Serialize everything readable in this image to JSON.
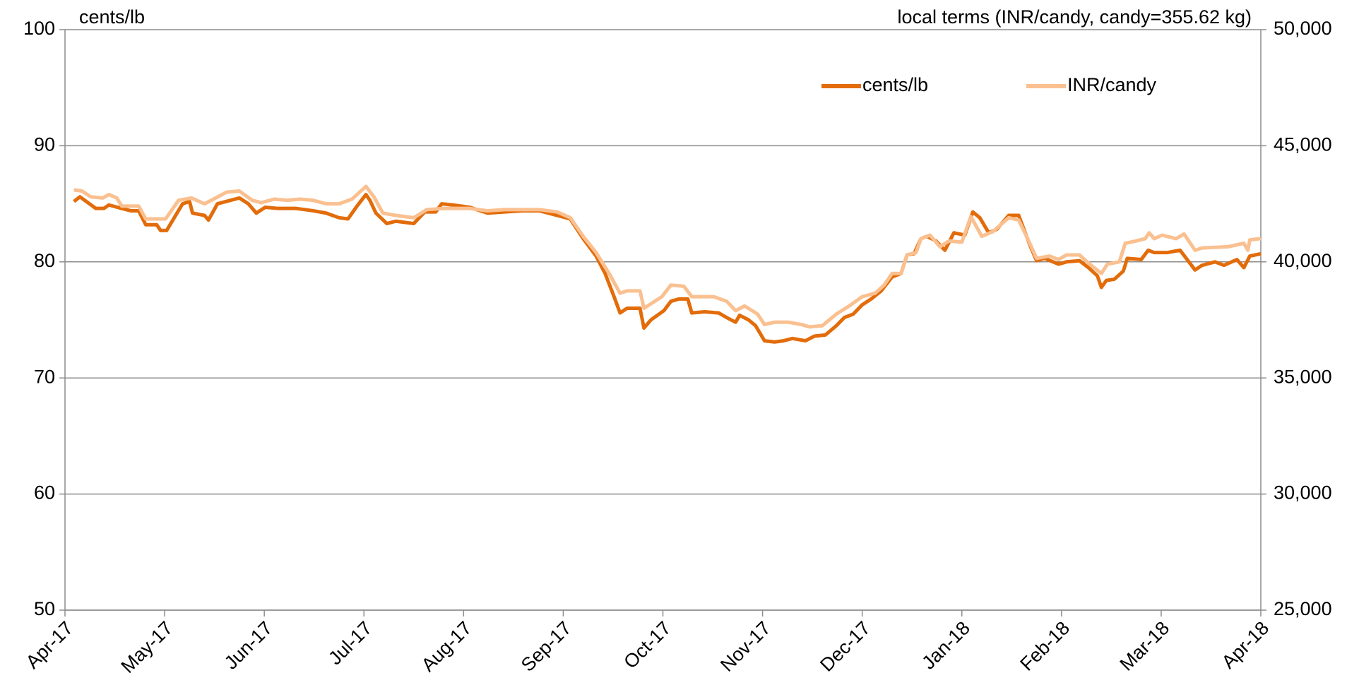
{
  "chart_data": {
    "type": "line",
    "y_label": "cents/lb",
    "y2_label": "local terms (INR/candy, candy=355.62 kg)",
    "xlim": [
      0,
      12
    ],
    "xticks": [
      {
        "value": 0,
        "label": "Apr-17"
      },
      {
        "value": 1,
        "label": "May-17"
      },
      {
        "value": 2,
        "label": "Jun-17"
      },
      {
        "value": 3,
        "label": "Jul-17"
      },
      {
        "value": 4,
        "label": "Aug-17"
      },
      {
        "value": 5,
        "label": "Sep-17"
      },
      {
        "value": 6,
        "label": "Oct-17"
      },
      {
        "value": 7,
        "label": "Nov-17"
      },
      {
        "value": 8,
        "label": "Dec-17"
      },
      {
        "value": 9,
        "label": "Jan-18"
      },
      {
        "value": 10,
        "label": "Feb-18"
      },
      {
        "value": 11,
        "label": "Mar-18"
      },
      {
        "value": 12,
        "label": "Apr-18"
      }
    ],
    "ylim": [
      50,
      100
    ],
    "yticks": [
      50,
      60,
      70,
      80,
      90,
      100
    ],
    "y2lim": [
      25000,
      50000
    ],
    "y2ticks": [
      {
        "value": 25000,
        "label": "25,000"
      },
      {
        "value": 30000,
        "label": "30,000"
      },
      {
        "value": 35000,
        "label": "35,000"
      },
      {
        "value": 40000,
        "label": "40,000"
      },
      {
        "value": 45000,
        "label": "45,000"
      },
      {
        "value": 50000,
        "label": "50,000"
      }
    ],
    "grid": true,
    "legend": "top-right",
    "series": [
      {
        "name": "cents/lb",
        "color": "#e36c0a",
        "x": [
          0.09,
          0.15,
          0.31,
          0.39,
          0.44,
          0.57,
          0.66,
          0.74,
          0.81,
          0.92,
          0.96,
          1.02,
          1.18,
          1.25,
          1.28,
          1.4,
          1.44,
          1.53,
          1.66,
          1.75,
          1.84,
          1.92,
          2.01,
          2.14,
          2.32,
          2.49,
          2.62,
          2.75,
          2.84,
          2.93,
          3.02,
          3.06,
          3.12,
          3.23,
          3.32,
          3.5,
          3.61,
          3.72,
          3.78,
          3.89,
          4.06,
          4.24,
          4.41,
          4.59,
          4.76,
          4.94,
          5.07,
          5.2,
          5.33,
          5.42,
          5.51,
          5.57,
          5.64,
          5.77,
          5.81,
          5.88,
          6.01,
          6.08,
          6.16,
          6.25,
          6.29,
          6.42,
          6.56,
          6.64,
          6.73,
          6.77,
          6.86,
          6.93,
          7.02,
          7.12,
          7.21,
          7.3,
          7.43,
          7.52,
          7.63,
          7.74,
          7.82,
          7.91,
          8.0,
          8.09,
          8.19,
          8.3,
          8.39,
          8.45,
          8.52,
          8.59,
          8.65,
          8.74,
          8.83,
          8.92,
          9.03,
          9.11,
          9.18,
          9.27,
          9.35,
          9.47,
          9.57,
          9.68,
          9.75,
          9.83,
          9.97,
          10.05,
          10.18,
          10.27,
          10.36,
          10.4,
          10.45,
          10.53,
          10.62,
          10.66,
          10.8,
          10.87,
          10.93,
          11.06,
          11.19,
          11.34,
          11.41,
          11.54,
          11.63,
          11.76,
          11.83,
          11.89,
          12.0
        ],
        "values": [
          85.2,
          85.6,
          84.6,
          84.6,
          84.9,
          84.6,
          84.4,
          84.4,
          83.2,
          83.2,
          82.7,
          82.7,
          85,
          85.2,
          84.2,
          84,
          83.6,
          85,
          85.3,
          85.5,
          85,
          84.2,
          84.7,
          84.6,
          84.6,
          84.4,
          84.2,
          83.8,
          83.7,
          84.8,
          85.8,
          85.3,
          84.2,
          83.3,
          83.5,
          83.3,
          84.3,
          84.3,
          85,
          84.9,
          84.7,
          84.2,
          84.3,
          84.4,
          84.4,
          84,
          83.7,
          82,
          80.5,
          79,
          77,
          75.6,
          76,
          76,
          74.3,
          75,
          75.8,
          76.6,
          76.8,
          76.8,
          75.6,
          75.7,
          75.6,
          75.2,
          74.8,
          75.4,
          75,
          74.5,
          73.2,
          73.1,
          73.2,
          73.4,
          73.2,
          73.6,
          73.7,
          74.5,
          75.2,
          75.5,
          76.3,
          76.8,
          77.5,
          78.7,
          79,
          80.6,
          80.7,
          82,
          82.2,
          81.8,
          81,
          82.5,
          82.3,
          84.3,
          83.8,
          82.5,
          82.8,
          84,
          84,
          81.5,
          80.1,
          80.3,
          79.8,
          80,
          80.1,
          79.5,
          78.8,
          77.8,
          78.4,
          78.5,
          79.2,
          80.3,
          80.2,
          81,
          80.8,
          80.8,
          81,
          79.3,
          79.7,
          80,
          79.7,
          80.2,
          79.5,
          80.5,
          80.7
        ]
      },
      {
        "name": "INR/candy",
        "color": "#fac090",
        "axis": "y2",
        "x": [
          0.09,
          0.17,
          0.26,
          0.38,
          0.44,
          0.52,
          0.57,
          0.74,
          0.81,
          1.01,
          1.14,
          1.27,
          1.4,
          1.49,
          1.62,
          1.75,
          1.88,
          1.97,
          2.1,
          2.23,
          2.36,
          2.49,
          2.62,
          2.75,
          2.88,
          3.02,
          3.1,
          3.19,
          3.32,
          3.5,
          3.63,
          3.8,
          4.06,
          4.24,
          4.41,
          4.59,
          4.76,
          4.94,
          5.07,
          5.2,
          5.33,
          5.46,
          5.57,
          5.64,
          5.77,
          5.81,
          5.99,
          6.08,
          6.21,
          6.29,
          6.51,
          6.64,
          6.73,
          6.82,
          6.95,
          7.02,
          7.12,
          7.26,
          7.39,
          7.47,
          7.6,
          7.74,
          7.87,
          8.0,
          8.13,
          8.22,
          8.3,
          8.39,
          8.45,
          8.54,
          8.59,
          8.68,
          8.78,
          8.87,
          9.0,
          9.09,
          9.2,
          9.31,
          9.47,
          9.57,
          9.66,
          9.75,
          9.88,
          9.97,
          10.05,
          10.18,
          10.27,
          10.4,
          10.46,
          10.58,
          10.64,
          10.75,
          10.84,
          10.88,
          10.93,
          11.01,
          11.15,
          11.23,
          11.34,
          11.41,
          11.67,
          11.83,
          11.87,
          11.89,
          12.0
        ],
        "values": [
          43100,
          43050,
          42800,
          42750,
          42900,
          42750,
          42400,
          42400,
          41850,
          41850,
          42650,
          42750,
          42500,
          42700,
          43000,
          43050,
          42650,
          42550,
          42700,
          42650,
          42700,
          42650,
          42500,
          42500,
          42700,
          43250,
          42800,
          42100,
          42000,
          41900,
          42250,
          42300,
          42300,
          42200,
          42250,
          42250,
          42250,
          42150,
          41900,
          41100,
          40400,
          39500,
          38650,
          38750,
          38750,
          38000,
          38500,
          39000,
          38950,
          38500,
          38500,
          38300,
          37900,
          38100,
          37750,
          37300,
          37400,
          37400,
          37300,
          37200,
          37250,
          37750,
          38100,
          38500,
          38650,
          39000,
          39500,
          39500,
          40300,
          40400,
          41000,
          41150,
          40650,
          40900,
          40850,
          41950,
          41100,
          41300,
          41900,
          41800,
          41000,
          40150,
          40250,
          40100,
          40300,
          40300,
          39950,
          39500,
          39900,
          40000,
          40800,
          40900,
          41000,
          41250,
          41000,
          41150,
          41000,
          41200,
          40500,
          40600,
          40650,
          40800,
          40500,
          40950,
          41000
        ]
      }
    ]
  }
}
